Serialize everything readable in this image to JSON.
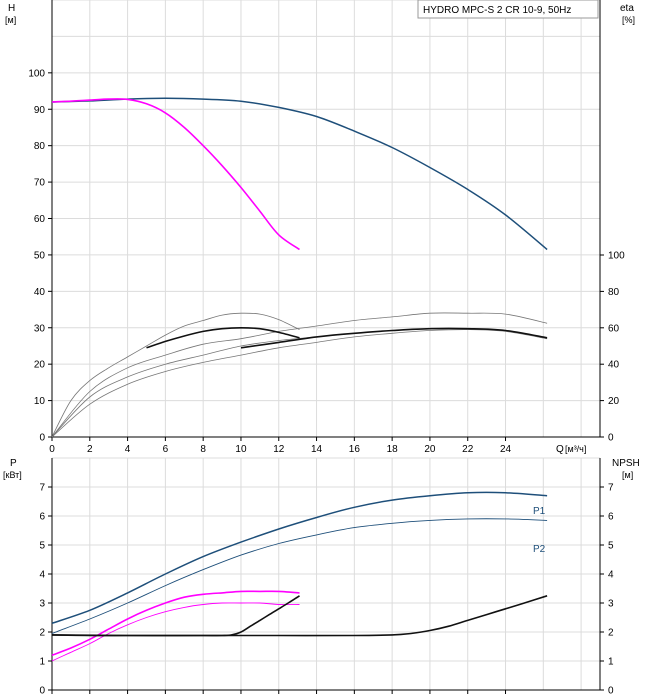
{
  "chart_data": [
    {
      "type": "line",
      "title": "HYDRO MPC-S 2 CR 10-9, 50Hz",
      "y_left": {
        "name": "H",
        "unit": "[м]",
        "ylim": [
          0,
          120
        ],
        "ticks": [
          0,
          10,
          20,
          30,
          40,
          50,
          60,
          70,
          80,
          90,
          100
        ]
      },
      "y_right": {
        "name": "eta",
        "unit": "[%]",
        "ylim": [
          0,
          100
        ],
        "ticks": [
          0,
          20,
          40,
          60,
          80,
          100
        ]
      },
      "x": {
        "name": "Q",
        "unit": "[м³/ч]",
        "xlim": [
          0,
          29
        ],
        "ticks": [
          0,
          2,
          4,
          6,
          8,
          10,
          12,
          14,
          16,
          18,
          20,
          22,
          24
        ]
      },
      "grid": true,
      "colors": {
        "total": "#1e4f7a",
        "single": "#ff00ff",
        "eff_thin": "#777777",
        "eff_thick": "#111111"
      },
      "series": [
        {
          "role": "head-total",
          "axis": "left",
          "color": "#1e4f7a",
          "x": [
            0,
            2,
            4,
            6,
            8,
            10,
            12,
            14,
            16,
            18,
            20,
            22,
            24,
            26.2
          ],
          "y": [
            92,
            92.3,
            92.8,
            93,
            92.8,
            92.2,
            90.5,
            88,
            84,
            79.5,
            74,
            68,
            61,
            51.5
          ]
        },
        {
          "role": "head-single",
          "axis": "left",
          "color": "#ff00ff",
          "x": [
            0,
            1,
            2,
            3,
            4,
            5,
            6,
            7,
            8,
            9,
            10,
            11,
            12,
            13.1
          ],
          "y": [
            92,
            92.2,
            92.5,
            92.8,
            92.7,
            91.5,
            89,
            85,
            80,
            74.5,
            68.5,
            62,
            55.5,
            51.5
          ]
        },
        {
          "role": "eta-thin-1",
          "axis": "right",
          "color": "#777777",
          "x": [
            0,
            1,
            2,
            3,
            4,
            5,
            6,
            7,
            8,
            9,
            10,
            11,
            12,
            13.1
          ],
          "y": [
            0,
            20,
            31,
            38,
            44,
            50,
            56,
            61,
            64,
            67,
            68,
            67.5,
            64.5,
            59
          ]
        },
        {
          "role": "eta-thin-2",
          "axis": "right",
          "color": "#777777",
          "x": [
            0,
            2,
            4,
            6,
            8,
            10,
            12,
            14,
            16,
            18,
            20,
            22,
            24,
            26.2
          ],
          "y": [
            0,
            25,
            38,
            45,
            51,
            54,
            58,
            61,
            64,
            66,
            68,
            68,
            67.5,
            62.5
          ]
        },
        {
          "role": "eta-thin-3",
          "axis": "right",
          "color": "#777777",
          "x": [
            0,
            2,
            4,
            6,
            8,
            10,
            12,
            14,
            16,
            18,
            20,
            22,
            24,
            26.2
          ],
          "y": [
            0,
            22,
            33,
            40,
            45,
            50,
            53,
            55,
            57,
            58.5,
            59.5,
            59.5,
            58.5,
            54
          ]
        },
        {
          "role": "eta-thin-4",
          "axis": "right",
          "color": "#777777",
          "x": [
            0,
            2,
            4,
            6,
            8,
            10,
            12,
            14,
            16,
            18,
            20,
            22,
            24,
            26.2
          ],
          "y": [
            0,
            18,
            29,
            36,
            41,
            45,
            49,
            52,
            55,
            57,
            58.5,
            59,
            58,
            54
          ]
        },
        {
          "role": "eta-thick-1",
          "axis": "right",
          "color": "#111111",
          "x": [
            5,
            6,
            7,
            8,
            9,
            10,
            11,
            12,
            13.1
          ],
          "y": [
            49,
            52.5,
            55.5,
            58,
            59.5,
            60,
            59.5,
            57.5,
            54.5
          ]
        },
        {
          "role": "eta-thick-2",
          "axis": "right",
          "color": "#111111",
          "x": [
            10,
            12,
            14,
            16,
            18,
            20,
            22,
            24,
            26.2
          ],
          "y": [
            49,
            52,
            55,
            57,
            58.5,
            59.5,
            59.5,
            58.5,
            54.5
          ]
        }
      ]
    },
    {
      "type": "line",
      "y_left": {
        "name": "P",
        "unit": "[кВт]",
        "ylim": [
          0,
          8
        ],
        "ticks": [
          0,
          1,
          2,
          3,
          4,
          5,
          6,
          7
        ]
      },
      "y_right": {
        "name": "NPSH",
        "unit": "[м]",
        "ylim": [
          0,
          8
        ],
        "ticks": [
          0,
          1,
          2,
          3,
          4,
          5,
          6,
          7
        ]
      },
      "x": {
        "xlim": [
          0,
          29
        ],
        "ticks": [
          0,
          2,
          4,
          6,
          8,
          10,
          12,
          14,
          16,
          18,
          20,
          22,
          24
        ]
      },
      "grid": true,
      "series": [
        {
          "name": "P1",
          "role": "p1-total",
          "axis": "left",
          "color": "#1e4f7a",
          "x": [
            0,
            2,
            4,
            6,
            8,
            10,
            12,
            14,
            16,
            18,
            20,
            22,
            24,
            26.2
          ],
          "y": [
            2.3,
            2.75,
            3.35,
            4.0,
            4.6,
            5.1,
            5.55,
            5.95,
            6.3,
            6.55,
            6.7,
            6.8,
            6.8,
            6.7
          ]
        },
        {
          "name": "P2",
          "role": "p2-total",
          "axis": "left",
          "color": "#1e4f7a",
          "x": [
            0,
            2,
            4,
            6,
            8,
            10,
            12,
            14,
            16,
            18,
            20,
            22,
            24,
            26.2
          ],
          "y": [
            1.95,
            2.45,
            3.0,
            3.6,
            4.15,
            4.65,
            5.05,
            5.35,
            5.6,
            5.75,
            5.85,
            5.9,
            5.9,
            5.85
          ]
        },
        {
          "role": "p1-single",
          "axis": "left",
          "color": "#ff00ff",
          "x": [
            0,
            1,
            2,
            3,
            4,
            5,
            6,
            7,
            8,
            9,
            10,
            11,
            12,
            13.1
          ],
          "y": [
            1.2,
            1.45,
            1.75,
            2.1,
            2.45,
            2.75,
            3.0,
            3.2,
            3.3,
            3.35,
            3.4,
            3.4,
            3.4,
            3.35
          ]
        },
        {
          "role": "p2-single",
          "axis": "left",
          "color": "#ff00ff",
          "x": [
            0,
            1,
            2,
            3,
            4,
            5,
            6,
            7,
            8,
            9,
            10,
            11,
            12,
            13.1
          ],
          "y": [
            1.0,
            1.3,
            1.6,
            1.95,
            2.25,
            2.5,
            2.7,
            2.85,
            2.95,
            3.0,
            3.0,
            3.0,
            2.95,
            2.95
          ]
        },
        {
          "role": "npsh-single",
          "axis": "right",
          "color": "#111111",
          "x": [
            0,
            2,
            4,
            6,
            8,
            9,
            9.5,
            10,
            10.5,
            11,
            11.5,
            12,
            12.5,
            13.1
          ],
          "y": [
            1.9,
            1.88,
            1.88,
            1.88,
            1.88,
            1.88,
            1.9,
            2.0,
            2.2,
            2.4,
            2.6,
            2.8,
            3.0,
            3.25
          ]
        },
        {
          "role": "npsh-total",
          "axis": "right",
          "color": "#111111",
          "x": [
            0,
            4,
            8,
            12,
            16,
            18,
            19,
            20,
            21,
            22,
            23,
            24,
            25,
            26.2
          ],
          "y": [
            1.9,
            1.88,
            1.88,
            1.88,
            1.88,
            1.9,
            1.95,
            2.05,
            2.2,
            2.4,
            2.6,
            2.8,
            3.0,
            3.25
          ]
        }
      ],
      "labels": {
        "p1": "P1",
        "p2": "P2"
      }
    }
  ]
}
